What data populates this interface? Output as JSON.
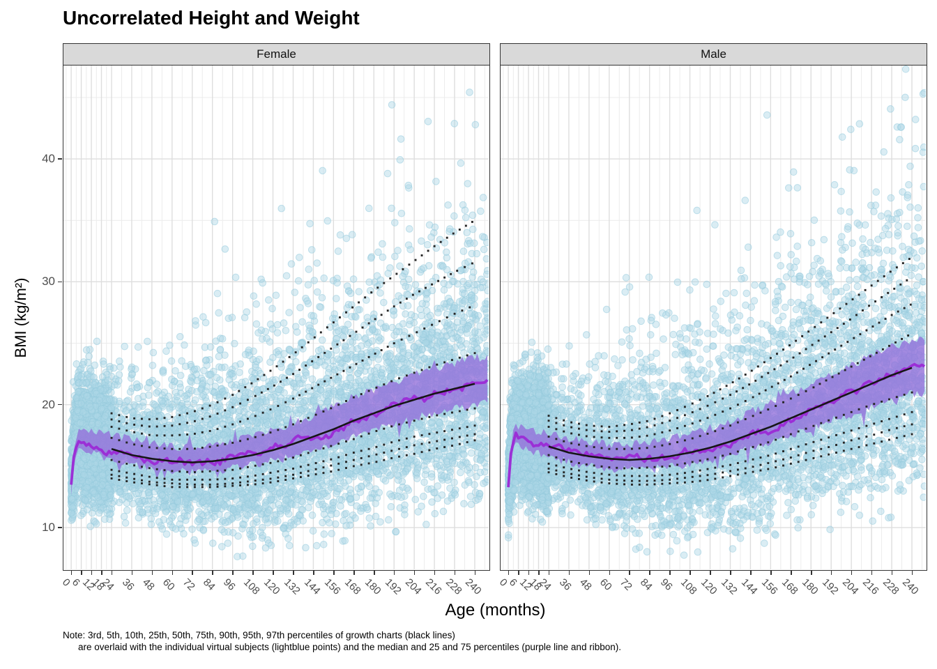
{
  "title": "Uncorrelated Height and Weight",
  "note": {
    "line1": "Note: 3rd, 5th, 10th, 25th, 50th, 75th, 90th, 95th, 97th percentiles of growth charts (black lines)",
    "line2": "are overlaid with the individual virtual subjects (lightblue points) and the median and 25 and 75 percentiles (purple line and ribbon)."
  },
  "colors": {
    "point_fill": "rgba(173,216,230,0.45)",
    "point_edge": "rgba(150,202,221,0.55)",
    "ribbon_fill": "rgba(147,112,219,0.80)",
    "median_line": "#9b2fd6",
    "growth_line": "#161616",
    "growth_dots": "#262626",
    "grid_major": "#dedede",
    "grid_minor": "#ececec",
    "strip_bg": "#d9d9d9",
    "axis_text": "#4d4d4d"
  },
  "chart_data": {
    "type": "scatter",
    "title": "Uncorrelated Height and Weight",
    "xlabel": "Age (months)",
    "ylabel": "BMI (kg/m²)",
    "xlim": [
      -4.6,
      248.3
    ],
    "ylim": [
      6.6,
      47.6
    ],
    "x_ticks": [
      0,
      6,
      12,
      18,
      24,
      36,
      48,
      60,
      72,
      84,
      96,
      108,
      120,
      132,
      144,
      156,
      168,
      180,
      192,
      204,
      216,
      228,
      240
    ],
    "x_tick_labels": [
      "0",
      "6",
      "12",
      "18",
      "24",
      "36",
      "48",
      "60",
      "72",
      "84",
      "96",
      "108",
      "120",
      "132",
      "144",
      "156",
      "168",
      "180",
      "192",
      "204",
      "216",
      "228",
      "240"
    ],
    "x_grid_minor": [
      -3,
      3,
      9,
      15,
      21,
      30,
      42,
      54,
      66,
      78,
      90,
      102,
      114,
      126,
      138,
      150,
      162,
      174,
      186,
      198,
      210,
      222,
      234,
      246
    ],
    "y_ticks": [
      10,
      20,
      30,
      40
    ],
    "y_tick_labels": [
      "10",
      "20",
      "30",
      "40"
    ],
    "y_grid_minor": [
      15,
      25,
      35,
      45
    ],
    "grid": true,
    "legend": "none",
    "percentile_labels": [
      "3rd",
      "5th",
      "10th",
      "25th",
      "50th",
      "75th",
      "90th",
      "95th",
      "97th"
    ],
    "growth_ages": [
      24,
      36,
      48,
      60,
      72,
      84,
      96,
      108,
      120,
      132,
      144,
      156,
      168,
      180,
      192,
      204,
      216,
      228,
      240
    ],
    "sim_ages": [
      0,
      2,
      4,
      6,
      9,
      12,
      18,
      24,
      36,
      48,
      60,
      72,
      84,
      96,
      108,
      120,
      132,
      144,
      156,
      168,
      180,
      192,
      204,
      216,
      228,
      240,
      248
    ],
    "facets": [
      {
        "label": "Female",
        "growth_percentiles": {
          "p3": [
            14.0,
            13.7,
            13.5,
            13.3,
            13.3,
            13.3,
            13.4,
            13.5,
            13.7,
            14.0,
            14.3,
            14.6,
            15.0,
            15.3,
            15.7,
            16.0,
            16.4,
            16.7,
            17.1
          ],
          "p5": [
            14.3,
            14.0,
            13.7,
            13.6,
            13.5,
            13.5,
            13.6,
            13.8,
            14.0,
            14.3,
            14.7,
            15.1,
            15.5,
            15.9,
            16.3,
            16.7,
            17.0,
            17.3,
            17.6
          ],
          "p10": [
            14.7,
            14.4,
            14.1,
            13.9,
            13.9,
            13.9,
            14.0,
            14.2,
            14.5,
            14.8,
            15.2,
            15.6,
            16.1,
            16.5,
            17.0,
            17.4,
            17.7,
            18.0,
            18.3
          ],
          "p25": [
            15.5,
            15.1,
            14.8,
            14.6,
            14.5,
            14.6,
            14.7,
            15.0,
            15.3,
            15.7,
            16.2,
            16.7,
            17.2,
            17.8,
            18.3,
            18.7,
            19.1,
            19.4,
            19.7
          ],
          "p50": [
            16.4,
            15.9,
            15.6,
            15.4,
            15.3,
            15.4,
            15.6,
            15.9,
            16.3,
            16.8,
            17.4,
            18.0,
            18.7,
            19.3,
            19.9,
            20.4,
            20.9,
            21.3,
            21.7
          ],
          "p75": [
            17.3,
            16.8,
            16.5,
            16.4,
            16.4,
            16.6,
            16.9,
            17.3,
            17.8,
            18.4,
            19.1,
            19.8,
            20.6,
            21.3,
            22.0,
            22.6,
            23.2,
            23.7,
            24.2
          ],
          "p90": [
            18.2,
            17.8,
            17.5,
            17.5,
            17.6,
            17.9,
            18.4,
            19.0,
            19.7,
            20.5,
            21.4,
            22.3,
            23.2,
            24.1,
            25.0,
            25.8,
            26.6,
            27.4,
            28.1
          ],
          "p95": [
            18.8,
            18.4,
            18.2,
            18.3,
            18.6,
            19.1,
            19.8,
            20.6,
            21.5,
            22.5,
            23.6,
            24.7,
            25.8,
            26.9,
            28.0,
            29.0,
            29.9,
            30.8,
            31.6
          ],
          "p97": [
            19.3,
            18.9,
            18.8,
            19.0,
            19.4,
            20.0,
            20.8,
            21.8,
            22.9,
            24.1,
            25.4,
            26.7,
            28.0,
            29.3,
            30.5,
            31.7,
            32.9,
            34.0,
            35.0
          ]
        },
        "sim_summary": {
          "p25": [
            12.8,
            15.6,
            16.4,
            16.3,
            16.1,
            16.0,
            15.8,
            15.5,
            15.1,
            14.8,
            14.6,
            14.5,
            14.6,
            14.8,
            15.1,
            15.4,
            15.8,
            16.3,
            16.8,
            17.4,
            17.9,
            18.4,
            18.9,
            19.3,
            19.7,
            20.0,
            20.1
          ],
          "p50": [
            13.4,
            16.3,
            17.2,
            17.1,
            16.9,
            16.8,
            16.6,
            16.4,
            15.9,
            15.6,
            15.4,
            15.3,
            15.4,
            15.7,
            16.0,
            16.4,
            16.9,
            17.5,
            18.1,
            18.7,
            19.3,
            19.9,
            20.4,
            20.9,
            21.3,
            21.7,
            21.8
          ],
          "p75": [
            14.0,
            17.0,
            18.0,
            18.0,
            17.9,
            17.8,
            17.7,
            17.6,
            17.1,
            16.8,
            16.6,
            16.5,
            16.7,
            17.0,
            17.4,
            17.9,
            18.5,
            19.1,
            19.8,
            20.5,
            21.2,
            21.8,
            22.4,
            22.9,
            23.4,
            23.8,
            23.9
          ]
        },
        "scatter": {
          "n": 8200,
          "seed": 42,
          "infant_frac": 0.44,
          "sigma_base": 0.1,
          "sigma_span": 0.15,
          "sigma_age_scale": 96,
          "low_tail_frac": 0.045,
          "radius": 4.8,
          "bmi_min": 7.2,
          "bmi_max": 47.3
        }
      },
      {
        "label": "Male",
        "growth_percentiles": {
          "p3": [
            14.5,
            14.1,
            13.8,
            13.6,
            13.5,
            13.5,
            13.6,
            13.7,
            13.9,
            14.2,
            14.5,
            14.8,
            15.2,
            15.6,
            16.0,
            16.4,
            16.8,
            17.2,
            17.6
          ],
          "p5": [
            14.8,
            14.4,
            14.1,
            13.9,
            13.8,
            13.8,
            13.9,
            14.1,
            14.3,
            14.6,
            14.9,
            15.3,
            15.7,
            16.2,
            16.6,
            17.1,
            17.5,
            18.0,
            18.4
          ],
          "p10": [
            15.2,
            14.8,
            14.5,
            14.3,
            14.2,
            14.2,
            14.3,
            14.5,
            14.8,
            15.1,
            15.5,
            15.9,
            16.4,
            16.9,
            17.4,
            17.9,
            18.4,
            18.9,
            19.4
          ],
          "p25": [
            15.9,
            15.4,
            15.1,
            14.9,
            14.8,
            14.9,
            15.0,
            15.3,
            15.6,
            16.0,
            16.5,
            17.0,
            17.6,
            18.2,
            18.8,
            19.4,
            20.0,
            20.5,
            21.0
          ],
          "p50": [
            16.6,
            16.1,
            15.8,
            15.6,
            15.5,
            15.6,
            15.8,
            16.1,
            16.5,
            17.0,
            17.6,
            18.2,
            18.9,
            19.6,
            20.3,
            21.0,
            21.7,
            22.4,
            23.0
          ],
          "p75": [
            17.4,
            16.9,
            16.6,
            16.4,
            16.4,
            16.5,
            16.8,
            17.2,
            17.7,
            18.3,
            19.0,
            19.7,
            20.5,
            21.3,
            22.2,
            23.1,
            24.0,
            24.9,
            25.8
          ],
          "p90": [
            18.2,
            17.7,
            17.4,
            17.3,
            17.3,
            17.5,
            17.9,
            18.4,
            19.0,
            19.7,
            20.5,
            21.4,
            22.3,
            23.3,
            24.3,
            25.3,
            26.3,
            27.3,
            28.2
          ],
          "p95": [
            18.7,
            18.2,
            17.9,
            17.8,
            17.9,
            18.2,
            18.7,
            19.3,
            20.0,
            20.8,
            21.7,
            22.7,
            23.7,
            24.8,
            25.9,
            27.0,
            28.2,
            29.3,
            30.4
          ],
          "p97": [
            19.1,
            18.6,
            18.3,
            18.2,
            18.4,
            18.7,
            19.3,
            20.0,
            20.8,
            21.7,
            22.7,
            23.8,
            24.9,
            26.1,
            27.3,
            28.5,
            29.7,
            30.9,
            32.0
          ]
        },
        "sim_summary": {
          "p25": [
            13.0,
            15.9,
            16.7,
            16.6,
            16.4,
            16.2,
            16.0,
            15.8,
            15.3,
            15.0,
            14.8,
            14.7,
            14.8,
            15.0,
            15.2,
            15.5,
            15.9,
            16.4,
            16.9,
            17.5,
            18.1,
            18.7,
            19.3,
            19.9,
            20.4,
            20.9,
            21.0
          ],
          "p50": [
            13.6,
            16.6,
            17.5,
            17.4,
            17.2,
            17.0,
            16.8,
            16.6,
            16.1,
            15.8,
            15.6,
            15.5,
            15.6,
            15.8,
            16.1,
            16.5,
            17.0,
            17.6,
            18.2,
            18.9,
            19.6,
            20.3,
            21.0,
            21.7,
            22.4,
            23.0,
            23.1
          ],
          "p75": [
            14.3,
            17.3,
            18.3,
            18.2,
            18.1,
            17.9,
            17.8,
            17.7,
            17.2,
            17.0,
            16.8,
            16.8,
            16.9,
            17.2,
            17.6,
            18.1,
            18.7,
            19.4,
            20.1,
            20.9,
            21.7,
            22.5,
            23.2,
            24.0,
            24.7,
            25.3,
            25.4
          ]
        },
        "scatter": {
          "n": 8200,
          "seed": 1337,
          "infant_frac": 0.44,
          "sigma_base": 0.1,
          "sigma_span": 0.15,
          "sigma_age_scale": 96,
          "low_tail_frac": 0.045,
          "radius": 4.8,
          "bmi_min": 7.2,
          "bmi_max": 47.3
        }
      }
    ]
  }
}
